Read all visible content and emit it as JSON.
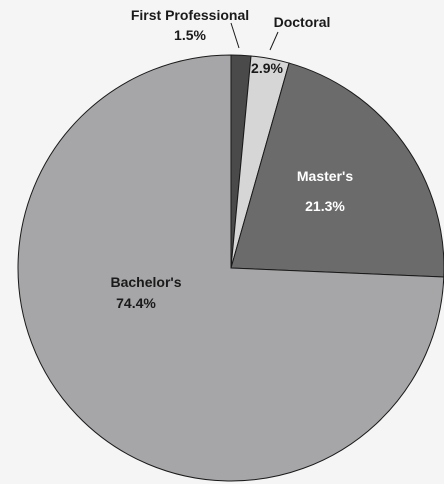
{
  "chart_data": {
    "type": "pie",
    "title": "",
    "slices": [
      {
        "name": "First Professional",
        "value": 1.5,
        "label": "1.5%",
        "color": "#4a4a4a"
      },
      {
        "name": "Doctoral",
        "value": 2.9,
        "label": "2.9%",
        "color": "#d6d6d6"
      },
      {
        "name": "Master's",
        "value": 21.3,
        "label": "21.3%",
        "color": "#6b6b6b"
      },
      {
        "name": "Bachelor's",
        "value": 74.4,
        "label": "74.4%",
        "color": "#a6a6a8"
      }
    ],
    "start_angle": "12 o'clock",
    "direction": "clockwise"
  }
}
